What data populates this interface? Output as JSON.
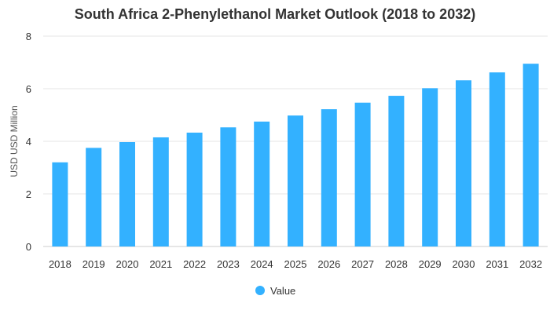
{
  "chart_data": {
    "type": "bar",
    "title": "South Africa 2-Phenylethanol Market Outlook (2018 to 2032)",
    "xlabel": "",
    "ylabel": "USD USD Million",
    "ylim": [
      0,
      8
    ],
    "yticks": [
      0,
      2,
      4,
      6,
      8
    ],
    "grid": true,
    "legend_position": "bottom",
    "categories": [
      "2018",
      "2019",
      "2020",
      "2021",
      "2022",
      "2023",
      "2024",
      "2025",
      "2026",
      "2027",
      "2028",
      "2029",
      "2030",
      "2031",
      "2032"
    ],
    "series": [
      {
        "name": "Value",
        "color": "#33b1ff",
        "values": [
          3.2,
          3.75,
          3.97,
          4.15,
          4.33,
          4.53,
          4.75,
          4.98,
          5.22,
          5.47,
          5.73,
          6.02,
          6.32,
          6.62,
          6.95
        ]
      }
    ]
  }
}
